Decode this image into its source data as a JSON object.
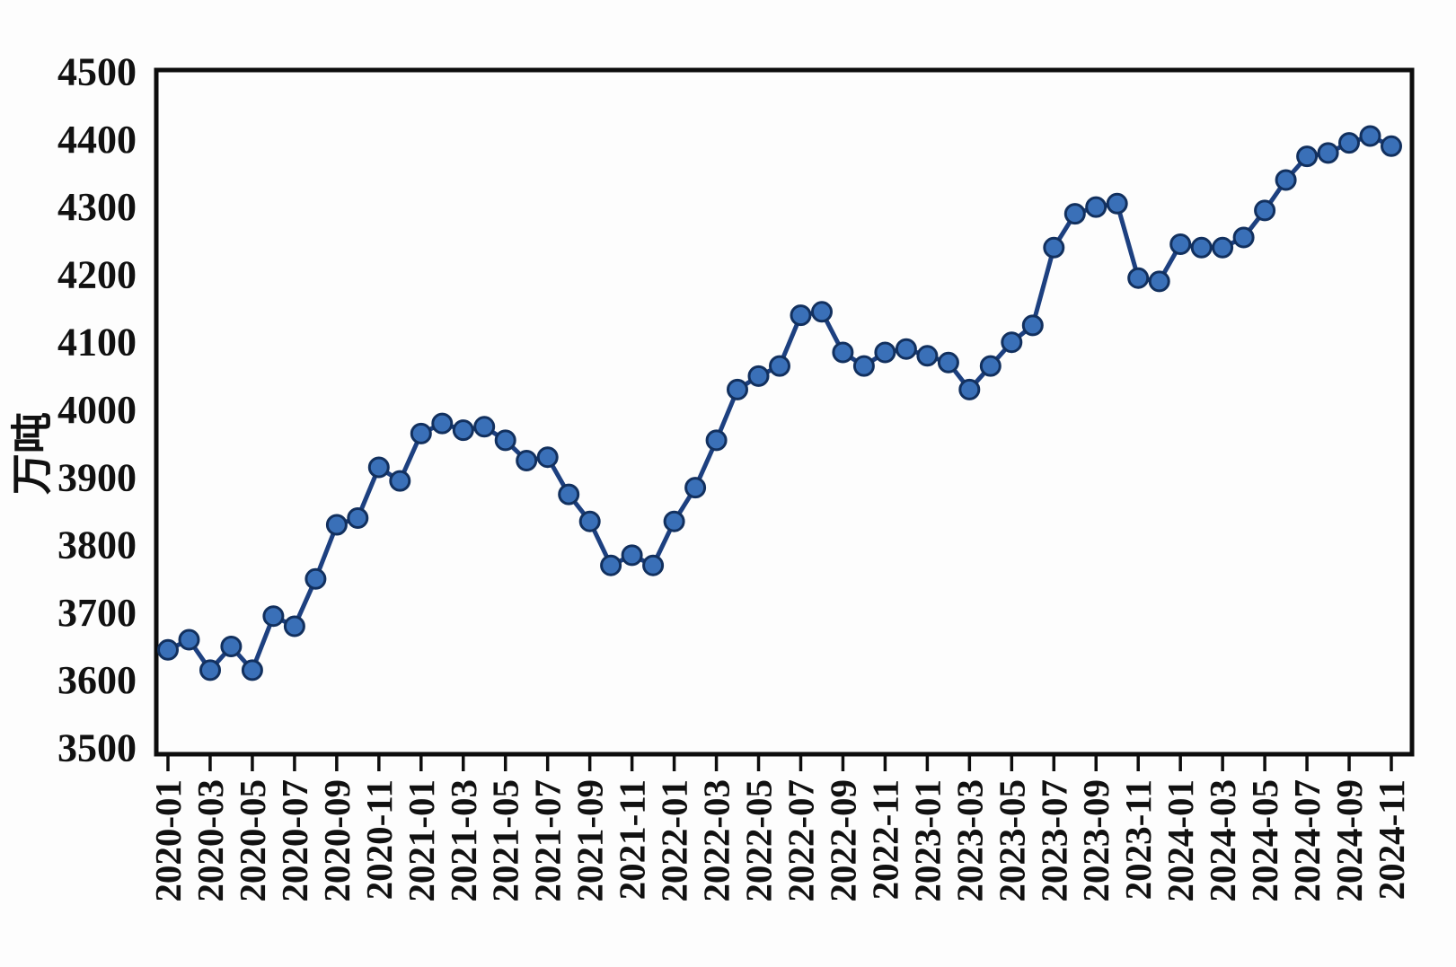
{
  "chart_data": {
    "type": "line",
    "title": "",
    "xlabel": "",
    "ylabel": "万吨",
    "ylim": [
      3500,
      4500
    ],
    "y_ticks": [
      3500,
      3600,
      3700,
      3800,
      3900,
      4000,
      4100,
      4200,
      4300,
      4400,
      4500
    ],
    "x_tick_label_every": 2,
    "grid": false,
    "legend_position": "none",
    "categories": [
      "2020-01",
      "2020-02",
      "2020-03",
      "2020-04",
      "2020-05",
      "2020-06",
      "2020-07",
      "2020-08",
      "2020-09",
      "2020-10",
      "2020-11",
      "2020-12",
      "2021-01",
      "2021-02",
      "2021-03",
      "2021-04",
      "2021-05",
      "2021-06",
      "2021-07",
      "2021-08",
      "2021-09",
      "2021-10",
      "2021-11",
      "2021-12",
      "2022-01",
      "2022-02",
      "2022-03",
      "2022-04",
      "2022-05",
      "2022-06",
      "2022-07",
      "2022-08",
      "2022-09",
      "2022-10",
      "2022-11",
      "2022-12",
      "2023-01",
      "2023-02",
      "2023-03",
      "2023-04",
      "2023-05",
      "2023-06",
      "2023-07",
      "2023-08",
      "2023-09",
      "2023-10",
      "2023-11",
      "2023-12",
      "2024-01",
      "2024-02",
      "2024-03",
      "2024-04",
      "2024-05",
      "2024-06",
      "2024-07",
      "2024-08",
      "2024-09",
      "2024-10",
      "2024-11"
    ],
    "values": [
      3645,
      3660,
      3615,
      3650,
      3615,
      3695,
      3680,
      3750,
      3830,
      3840,
      3915,
      3895,
      3965,
      3980,
      3970,
      3975,
      3955,
      3925,
      3930,
      3875,
      3835,
      3770,
      3785,
      3770,
      3835,
      3885,
      3955,
      4030,
      4050,
      4065,
      4140,
      4145,
      4085,
      4065,
      4085,
      4090,
      4080,
      4070,
      4030,
      4065,
      4100,
      4125,
      4240,
      4290,
      4300,
      4305,
      4195,
      4190,
      4245,
      4240,
      4240,
      4255,
      4295,
      4340,
      4375,
      4380,
      4395,
      4405,
      4390
    ],
    "colors": {
      "line": "#1d4080",
      "marker_fill": "#3a70b8",
      "marker_stroke": "#12305e",
      "axis": "#0d0d0d",
      "text": "#111111"
    }
  }
}
